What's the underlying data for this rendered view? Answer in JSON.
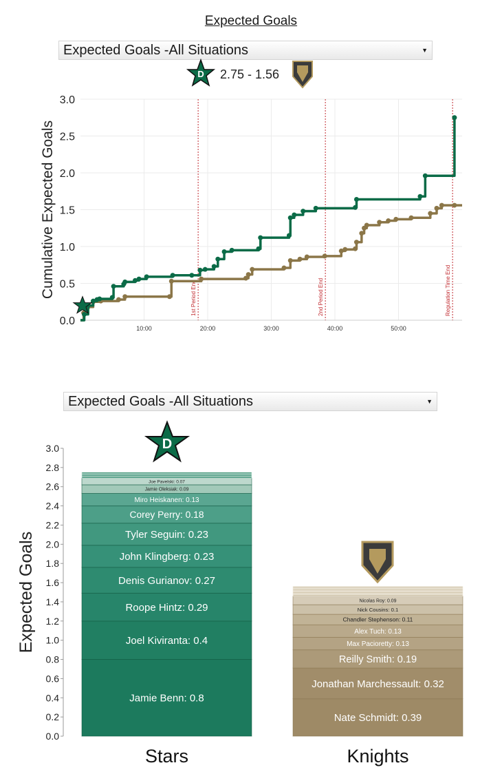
{
  "page": {
    "title": "Expected Goals"
  },
  "top_chart": {
    "selector_value": "Expected Goals -All Situations",
    "score_text": "2.75 - 1.56"
  },
  "bottom_chart": {
    "selector_value": "Expected Goals -All Situations"
  },
  "colors": {
    "stars": "#0b6b47",
    "knights": "#8b7648",
    "period_line": "#c0282d"
  },
  "chart_data": [
    {
      "type": "line",
      "title": "",
      "xlabel": "",
      "ylabel": "Cumulative Expected Goals",
      "xlim": [
        0,
        60
      ],
      "ylim": [
        0,
        3.0
      ],
      "x_ticks": [
        {
          "v": 10,
          "label": "10:00"
        },
        {
          "v": 20,
          "label": "20:00"
        },
        {
          "v": 30,
          "label": "30:00"
        },
        {
          "v": 40,
          "label": "40:00"
        },
        {
          "v": 50,
          "label": "50:00"
        }
      ],
      "y_ticks": [
        {
          "v": 0,
          "label": "0.0"
        },
        {
          "v": 0.5,
          "label": "0.5"
        },
        {
          "v": 1.0,
          "label": "1.0"
        },
        {
          "v": 1.5,
          "label": "1.5"
        },
        {
          "v": 2.0,
          "label": "2.0"
        },
        {
          "v": 2.5,
          "label": "2.5"
        },
        {
          "v": 3.0,
          "label": "3.0"
        }
      ],
      "grid": true,
      "annotations": [
        {
          "x": 18.5,
          "label": "1st Period End"
        },
        {
          "x": 38.5,
          "label": "2nd Period End"
        },
        {
          "x": 58.5,
          "label": "Regulation Time End"
        }
      ],
      "series": [
        {
          "team": "stars",
          "points": [
            [
              0.0,
              0.0
            ],
            [
              0.6,
              0.08
            ],
            [
              1.2,
              0.2
            ],
            [
              2.0,
              0.26
            ],
            [
              2.6,
              0.28
            ],
            [
              3.0,
              0.29
            ],
            [
              5.0,
              0.31
            ],
            [
              5.2,
              0.46
            ],
            [
              6.8,
              0.49
            ],
            [
              7.0,
              0.52
            ],
            [
              8.6,
              0.54
            ],
            [
              9.2,
              0.56
            ],
            [
              10.4,
              0.59
            ],
            [
              14.5,
              0.61
            ],
            [
              17.5,
              0.61
            ],
            [
              18.8,
              0.68
            ],
            [
              19.6,
              0.69
            ],
            [
              21.0,
              0.73
            ],
            [
              21.6,
              0.83
            ],
            [
              22.6,
              0.93
            ],
            [
              23.8,
              0.95
            ],
            [
              28.0,
              0.97
            ],
            [
              28.3,
              1.12
            ],
            [
              32.8,
              1.15
            ],
            [
              33.0,
              1.39
            ],
            [
              33.6,
              1.43
            ],
            [
              35.0,
              1.48
            ],
            [
              37.0,
              1.52
            ],
            [
              43.2,
              1.53
            ],
            [
              43.4,
              1.64
            ],
            [
              53.4,
              1.68
            ],
            [
              54.2,
              1.96
            ],
            [
              58.8,
              2.75
            ]
          ]
        },
        {
          "team": "knights",
          "points": [
            [
              0.0,
              0.0
            ],
            [
              0.5,
              0.1
            ],
            [
              1.2,
              0.18
            ],
            [
              2.0,
              0.25
            ],
            [
              3.2,
              0.26
            ],
            [
              6.0,
              0.28
            ],
            [
              7.0,
              0.32
            ],
            [
              14.0,
              0.32
            ],
            [
              14.3,
              0.53
            ],
            [
              19.0,
              0.56
            ],
            [
              26.0,
              0.57
            ],
            [
              26.4,
              0.62
            ],
            [
              27.0,
              0.69
            ],
            [
              32.0,
              0.71
            ],
            [
              33.0,
              0.81
            ],
            [
              34.5,
              0.83
            ],
            [
              35.6,
              0.86
            ],
            [
              38.4,
              0.87
            ],
            [
              41.0,
              0.94
            ],
            [
              41.6,
              0.96
            ],
            [
              43.2,
              0.97
            ],
            [
              43.4,
              1.06
            ],
            [
              44.2,
              1.18
            ],
            [
              44.6,
              1.25
            ],
            [
              45.0,
              1.29
            ],
            [
              47.0,
              1.33
            ],
            [
              48.4,
              1.35
            ],
            [
              49.6,
              1.37
            ],
            [
              52.0,
              1.39
            ],
            [
              55.0,
              1.45
            ],
            [
              56.0,
              1.52
            ],
            [
              56.8,
              1.56
            ],
            [
              58.8,
              1.56
            ]
          ]
        }
      ]
    },
    {
      "type": "bar",
      "title": "",
      "ylabel": "Expected Goals",
      "ylim": [
        0,
        3.0
      ],
      "y_ticks": [
        {
          "v": 0.0,
          "label": "0.0"
        },
        {
          "v": 0.2,
          "label": "0.2"
        },
        {
          "v": 0.4,
          "label": "0.4"
        },
        {
          "v": 0.6,
          "label": "0.6"
        },
        {
          "v": 0.8,
          "label": "0.8"
        },
        {
          "v": 1.0,
          "label": "1.0"
        },
        {
          "v": 1.2,
          "label": "1.2"
        },
        {
          "v": 1.4,
          "label": "1.4"
        },
        {
          "v": 1.6,
          "label": "1.6"
        },
        {
          "v": 1.8,
          "label": "1.8"
        },
        {
          "v": 2.0,
          "label": "2.0"
        },
        {
          "v": 2.2,
          "label": "2.2"
        },
        {
          "v": 2.4,
          "label": "2.4"
        },
        {
          "v": 2.6,
          "label": "2.6"
        },
        {
          "v": 2.8,
          "label": "2.8"
        },
        {
          "v": 3.0,
          "label": "3.0"
        }
      ],
      "categories": [
        "Stars",
        "Knights"
      ],
      "stacks": [
        {
          "team": "stars",
          "total": 2.75,
          "segments": [
            {
              "label": "Jamie Benn: 0.8",
              "value": 0.8
            },
            {
              "label": "Joel Kiviranta: 0.4",
              "value": 0.4
            },
            {
              "label": "Roope Hintz: 0.29",
              "value": 0.29
            },
            {
              "label": "Denis Gurianov: 0.27",
              "value": 0.27
            },
            {
              "label": "John Klingberg: 0.23",
              "value": 0.23
            },
            {
              "label": "Tyler Seguin: 0.23",
              "value": 0.23
            },
            {
              "label": "Corey Perry: 0.18",
              "value": 0.18
            },
            {
              "label": "Miro Heiskanen: 0.13",
              "value": 0.13
            },
            {
              "label": "Jamie Oleksiak: 0.09",
              "value": 0.09
            },
            {
              "label": "Joe Pavelski: 0.07",
              "value": 0.07
            }
          ]
        },
        {
          "team": "knights",
          "total": 1.56,
          "segments": [
            {
              "label": "Nate Schmidt: 0.39",
              "value": 0.39
            },
            {
              "label": "Jonathan Marchessault: 0.32",
              "value": 0.32
            },
            {
              "label": "Reilly Smith: 0.19",
              "value": 0.19
            },
            {
              "label": "Max Pacioretty: 0.13",
              "value": 0.13
            },
            {
              "label": "Alex Tuch: 0.13",
              "value": 0.13
            },
            {
              "label": "Chandler Stephenson: 0.11",
              "value": 0.11
            },
            {
              "label": "Nick Cousins: 0.1",
              "value": 0.1
            },
            {
              "label": "Nicolas Roy: 0.09",
              "value": 0.09
            }
          ]
        }
      ]
    }
  ]
}
